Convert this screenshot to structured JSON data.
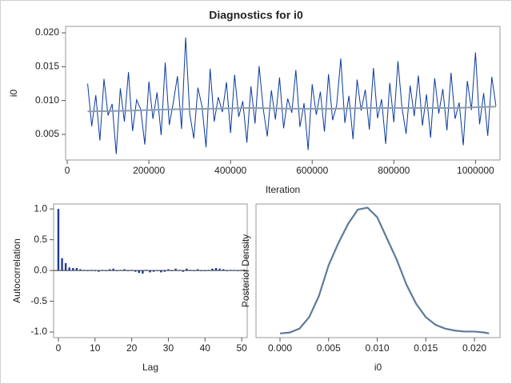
{
  "chart_data": [
    {
      "type": "line",
      "title": "Diagnostics for i0",
      "x_label": "Iteration",
      "y_label": "i0",
      "xlim": [
        -4000,
        1060000
      ],
      "ylim": [
        0.00122,
        0.02095
      ],
      "xticks": [
        0,
        200000,
        400000,
        600000,
        800000,
        1000000
      ],
      "yticks": [
        0.005,
        {
          "value": 0.01,
          "label": "0.010"
        },
        0.015,
        {
          "value": 0.02,
          "label": "0.020"
        }
      ],
      "series": [
        {
          "color": "#0b3a9c",
          "x": [
            50000,
            60000,
            70000,
            80000,
            90000,
            100000,
            110000,
            120000,
            130000,
            140000,
            150000,
            160000,
            170000,
            180000,
            190000,
            200000,
            210000,
            220000,
            230000,
            240000,
            250000,
            260000,
            270000,
            280000,
            290000,
            300000,
            310000,
            320000,
            330000,
            340000,
            350000,
            360000,
            370000,
            380000,
            390000,
            400000,
            410000,
            420000,
            430000,
            440000,
            450000,
            460000,
            470000,
            480000,
            490000,
            500000,
            510000,
            520000,
            530000,
            540000,
            550000,
            560000,
            570000,
            580000,
            590000,
            600000,
            610000,
            620000,
            630000,
            640000,
            650000,
            660000,
            670000,
            680000,
            690000,
            700000,
            710000,
            720000,
            730000,
            740000,
            750000,
            760000,
            770000,
            780000,
            790000,
            800000,
            810000,
            820000,
            830000,
            840000,
            850000,
            860000,
            870000,
            880000,
            890000,
            900000,
            910000,
            920000,
            930000,
            940000,
            950000,
            960000,
            970000,
            980000,
            990000,
            1000000,
            1010000,
            1020000,
            1030000,
            1040000,
            1050000
          ],
          "values": [
            0.0125,
            0.0062,
            0.0108,
            0.0041,
            0.0132,
            0.0078,
            0.0095,
            0.0021,
            0.0118,
            0.0069,
            0.0142,
            0.0055,
            0.0101,
            0.0087,
            0.0035,
            0.0128,
            0.0073,
            0.0112,
            0.0049,
            0.0156,
            0.0064,
            0.0098,
            0.0136,
            0.0058,
            0.0193,
            0.0081,
            0.0044,
            0.0119,
            0.0092,
            0.0031,
            0.0147,
            0.0069,
            0.0105,
            0.0083,
            0.0127,
            0.0052,
            0.0138,
            0.0076,
            0.0099,
            0.0038,
            0.0121,
            0.0066,
            0.0151,
            0.0088,
            0.0047,
            0.0115,
            0.0072,
            0.0134,
            0.0059,
            0.0103,
            0.0082,
            0.0145,
            0.0061,
            0.0096,
            0.0027,
            0.0124,
            0.0079,
            0.0113,
            0.0054,
            0.0139,
            0.0071,
            0.0093,
            0.0162,
            0.0067,
            0.0107,
            0.0043,
            0.0131,
            0.0085,
            0.0116,
            0.0057,
            0.0148,
            0.0074,
            0.0102,
            0.0036,
            0.0126,
            0.0068,
            0.0158,
            0.0089,
            0.0051,
            0.0122,
            0.0077,
            0.0137,
            0.0063,
            0.0109,
            0.0045,
            0.0133,
            0.0081,
            0.0117,
            0.0056,
            0.0141,
            0.0073,
            0.0097,
            0.0034,
            0.0129,
            0.0086,
            0.0171,
            0.0065,
            0.0111,
            0.0048,
            0.0135,
            0.0092
          ]
        },
        {
          "color": "#8c9cb0",
          "x": [
            50000,
            150000,
            250000,
            350000,
            450000,
            550000,
            650000,
            750000,
            850000,
            950000,
            1050000
          ],
          "values": [
            0.0084,
            0.0085,
            0.0087,
            0.0088,
            0.0089,
            0.0088,
            0.0088,
            0.0089,
            0.0089,
            0.0089,
            0.0091
          ]
        }
      ]
    },
    {
      "type": "bar",
      "x_label": "Lag",
      "y_label": "Autocorrelation",
      "color": "#1f3a93",
      "xlim": [
        -1.3,
        51.5
      ],
      "ylim": [
        -1.09,
        1.08
      ],
      "xticks": [
        0,
        10,
        20,
        30,
        40,
        50
      ],
      "yticks": [
        {
          "value": -1,
          "label": "-1.0"
        },
        -0.5,
        {
          "value": 0,
          "label": "0.0"
        },
        0.5,
        {
          "value": 1,
          "label": "1.0"
        }
      ],
      "x": [
        0,
        1,
        2,
        3,
        4,
        5,
        6,
        7,
        8,
        9,
        10,
        11,
        12,
        13,
        14,
        15,
        16,
        17,
        18,
        19,
        20,
        21,
        22,
        23,
        24,
        25,
        26,
        27,
        28,
        29,
        30,
        31,
        32,
        33,
        34,
        35,
        36,
        37,
        38,
        39,
        40,
        41,
        42,
        43,
        44,
        45,
        46,
        47,
        48,
        49,
        50
      ],
      "values": [
        1.0,
        0.2,
        0.12,
        0.05,
        0.04,
        0.04,
        0.02,
        0.01,
        -0.01,
        0.01,
        -0.01,
        -0.02,
        0.01,
        -0.01,
        0.02,
        0.03,
        -0.01,
        0.01,
        0.02,
        -0.01,
        0.01,
        -0.02,
        -0.04,
        -0.05,
        0.01,
        -0.03,
        -0.02,
        -0.01,
        -0.03,
        -0.02,
        0.02,
        -0.01,
        0.03,
        0.01,
        -0.02,
        0.03,
        0.01,
        -0.01,
        0.02,
        -0.01,
        -0.01,
        0.01,
        0.03,
        0.04,
        0.03,
        0.02,
        -0.01,
        0.01,
        0.01,
        -0.01,
        0.01
      ]
    },
    {
      "type": "line",
      "x_label": "i0",
      "y_label": "Posterior Density",
      "xlim": [
        -0.00247,
        0.02263
      ],
      "ylim": [
        -3.3,
        135.8
      ],
      "xticks": [
        {
          "value": 0,
          "label": "0.000"
        },
        0.005,
        {
          "value": 0.01,
          "label": "0.010"
        },
        0.015,
        {
          "value": 0.02,
          "label": "0.020"
        }
      ],
      "series": [
        {
          "color": "#5f7a99",
          "x": [
            0,
            0.001,
            0.002,
            0.003,
            0.004,
            0.005,
            0.006,
            0.007,
            0.008,
            0.009,
            0.01,
            0.011,
            0.012,
            0.013,
            0.014,
            0.015,
            0.016,
            0.017,
            0.018,
            0.019,
            0.02,
            0.021,
            0.0215
          ],
          "values": [
            1,
            2,
            6,
            18,
            40,
            72,
            95,
            115,
            130,
            132,
            122,
            100,
            78,
            52,
            32,
            18,
            10,
            6,
            4,
            3,
            3,
            2,
            1
          ]
        }
      ]
    }
  ]
}
